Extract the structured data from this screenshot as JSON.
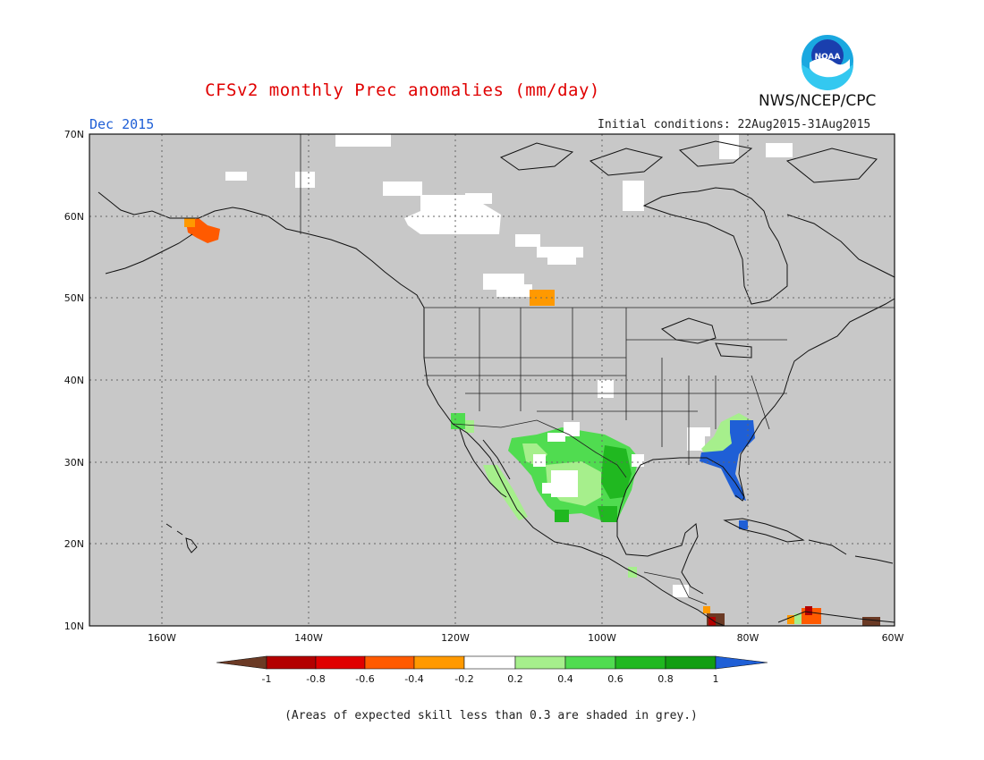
{
  "header": {
    "title": "CFSv2 monthly Prec anomalies (mm/day)",
    "org": "NWS/NCEP/CPC",
    "logo_text": "NOAA",
    "period": "Dec 2015",
    "initial_conditions": "Initial conditions: 22Aug2015-31Aug2015"
  },
  "map": {
    "lon_range": [
      -170,
      -60
    ],
    "lat_range": [
      10,
      70
    ],
    "background_color": "#c8c8c8",
    "land_masked_color": "#ffffff",
    "lat_ticks": [
      "70N",
      "60N",
      "50N",
      "40N",
      "30N",
      "20N",
      "10N"
    ],
    "lon_ticks": [
      "160W",
      "140W",
      "120W",
      "100W",
      "80W",
      "60W"
    ],
    "gridlines": "dotted"
  },
  "colorbar": {
    "labels": [
      "-1",
      "-0.8",
      "-0.6",
      "-0.4",
      "-0.2",
      "0.2",
      "0.4",
      "0.6",
      "0.8",
      "1"
    ],
    "colors": [
      "#6b3a25",
      "#b30000",
      "#e00000",
      "#ff5a00",
      "#ff9900",
      "#ffffff",
      "#a6ef8c",
      "#50dc50",
      "#20b820",
      "#129e12",
      "#1f5fd6"
    ]
  },
  "note": "(Areas of expected skill less than 0.3 are shaded in grey.)"
}
